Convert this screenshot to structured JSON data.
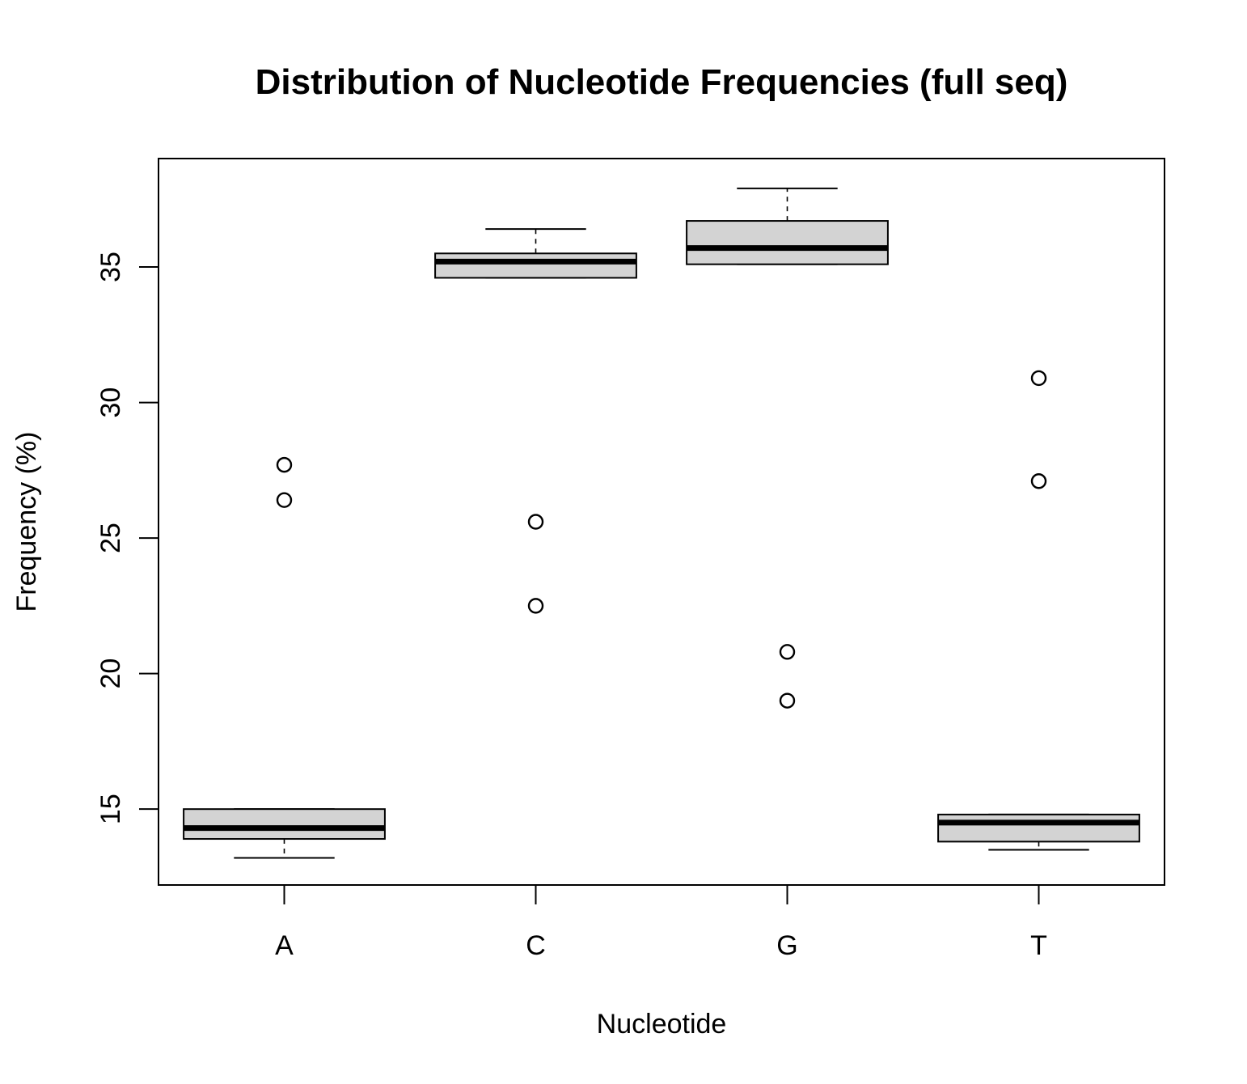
{
  "chart_data": {
    "type": "boxplot",
    "title": "Distribution of Nucleotide Frequencies (full seq)",
    "xlabel": "Nucleotide",
    "ylabel": "Frequency (%)",
    "ylim": [
      12.2,
      39.0
    ],
    "yticks": [
      15,
      20,
      25,
      30,
      35
    ],
    "yticklabels": [
      "15",
      "20",
      "25",
      "30",
      "35"
    ],
    "categories": [
      "A",
      "C",
      "G",
      "T"
    ],
    "box_color": "#d3d3d3",
    "boxes": [
      {
        "category": "A",
        "whisker_low": 13.2,
        "q1": 13.9,
        "median": 14.3,
        "q3": 15.0,
        "whisker_high": 15.0,
        "outliers": [
          26.4,
          27.7
        ]
      },
      {
        "category": "C",
        "whisker_low": 34.6,
        "q1": 34.6,
        "median": 35.2,
        "q3": 35.5,
        "whisker_high": 36.4,
        "outliers": [
          22.5,
          25.6
        ]
      },
      {
        "category": "G",
        "whisker_low": 35.1,
        "q1": 35.1,
        "median": 35.7,
        "q3": 36.7,
        "whisker_high": 37.9,
        "outliers": [
          19.0,
          20.8
        ]
      },
      {
        "category": "T",
        "whisker_low": 13.5,
        "q1": 13.8,
        "median": 14.5,
        "q3": 14.8,
        "whisker_high": 14.8,
        "outliers": [
          27.1,
          30.9
        ]
      }
    ],
    "grid": false,
    "legend": "none"
  }
}
